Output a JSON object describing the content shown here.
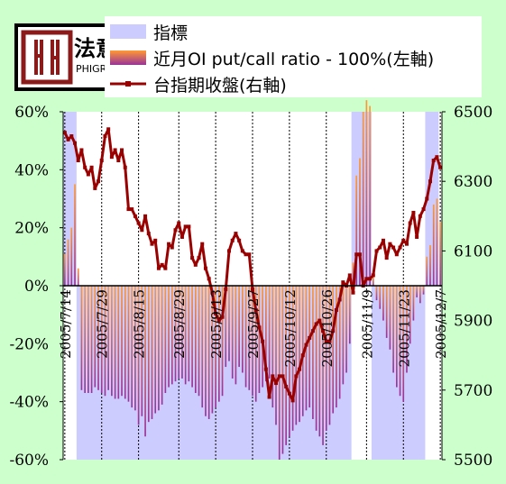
{
  "logo": {
    "brand_cn": "法意",
    "brand_en": "PHIGROUP"
  },
  "legend": [
    {
      "label": "指標",
      "kind": "area",
      "color": "#ccccff"
    },
    {
      "label": "近月OI put/call ratio - 100%(左軸)",
      "kind": "bar",
      "color_top": "#ff9933",
      "color_bottom": "#993399"
    },
    {
      "label": "台指期收盤(右軸)",
      "kind": "line",
      "color": "#990000"
    }
  ],
  "chart_data": {
    "type": "bar+line",
    "title": "",
    "x_tick_labels": [
      "2005/7/14",
      "2005/7/29",
      "2005/8/15",
      "2005/8/29",
      "2005/9/13",
      "2005/9/27",
      "2005/10/12",
      "2005/10/26",
      "2005/11/9",
      "2005/11/23",
      "2005/12/7"
    ],
    "y_left": {
      "min": -60,
      "max": 60,
      "ticks": [
        -60,
        -40,
        -20,
        0,
        20,
        40,
        60
      ],
      "tick_labels": [
        "-60%",
        "-40%",
        "-20%",
        "0%",
        "20%",
        "40%",
        "60%"
      ]
    },
    "y_right": {
      "min": 5500,
      "max": 6500,
      "ticks": [
        5500,
        5700,
        5900,
        6100,
        6300,
        6500
      ],
      "tick_labels": [
        "5500",
        "5700",
        "5900",
        "6100",
        "6300",
        "6500"
      ]
    },
    "indicator_shading": [
      {
        "start_day": 0,
        "end_day": 4,
        "side": "up"
      },
      {
        "start_day": 4,
        "end_day": 86,
        "side": "down"
      },
      {
        "start_day": 86,
        "end_day": 92,
        "side": "up"
      },
      {
        "start_day": 92,
        "end_day": 108,
        "side": "down"
      },
      {
        "start_day": 108,
        "end_day": 112,
        "side": "up"
      }
    ],
    "series": [
      {
        "name": "近月OI put/call ratio - 100%",
        "axis": "left",
        "type": "bar",
        "values": [
          11,
          16,
          20,
          35,
          6,
          -36,
          -37,
          -37,
          -37,
          -35,
          -36,
          -37,
          -38,
          -36,
          -38,
          -39,
          -39,
          -38,
          -39,
          -40,
          -42,
          -43,
          -48,
          -45,
          -52,
          -47,
          -46,
          -44,
          -43,
          -41,
          -37,
          -35,
          -34,
          -33,
          -32,
          -32,
          -34,
          -33,
          -35,
          -37,
          -38,
          -42,
          -45,
          -46,
          -44,
          -42,
          -40,
          -38,
          -28,
          -26,
          -32,
          -34,
          -28,
          -30,
          -35,
          -36,
          -38,
          -40,
          -37,
          -35,
          -33,
          -32,
          -42,
          -48,
          -60,
          -58,
          -55,
          -52,
          -50,
          -48,
          -47,
          -45,
          -43,
          -42,
          -46,
          -50,
          -52,
          -55,
          -50,
          -48,
          -44,
          -42,
          -39,
          -34,
          -30,
          -20,
          8,
          38,
          44,
          60,
          64,
          62,
          3,
          -5,
          -8,
          -12,
          -18,
          -22,
          -30,
          -35,
          -38,
          -40,
          -30,
          -20,
          -12,
          -4,
          -6,
          -3,
          10,
          14,
          28,
          30,
          22
        ]
      },
      {
        "name": "台指期收盤",
        "axis": "right",
        "type": "line",
        "values": [
          6440,
          6420,
          6430,
          6410,
          6360,
          6390,
          6340,
          6320,
          6340,
          6280,
          6300,
          6360,
          6430,
          6450,
          6370,
          6390,
          6360,
          6390,
          6340,
          6220,
          6220,
          6200,
          6180,
          6160,
          6200,
          6150,
          6120,
          6130,
          6050,
          6060,
          6050,
          6120,
          6110,
          6160,
          6180,
          6140,
          6170,
          6170,
          6080,
          6060,
          6080,
          6120,
          6050,
          6020,
          5980,
          5920,
          5900,
          5910,
          5990,
          6100,
          6130,
          6150,
          6130,
          6100,
          6090,
          6090,
          5990,
          5930,
          5880,
          5840,
          5760,
          5680,
          5740,
          5720,
          5740,
          5740,
          5710,
          5690,
          5670,
          5740,
          5760,
          5800,
          5830,
          5850,
          5870,
          5890,
          5900,
          5870,
          5840,
          5840,
          5870,
          5930,
          5960,
          6010,
          6000,
          6030,
          5980,
          6090,
          6090,
          6000,
          6020,
          6020,
          6030,
          6100,
          6110,
          6130,
          6080,
          6120,
          6110,
          6090,
          6110,
          6130,
          6120,
          6180,
          6210,
          6140,
          6200,
          6220,
          6250,
          6300,
          6360,
          6370,
          6340
        ]
      }
    ]
  }
}
